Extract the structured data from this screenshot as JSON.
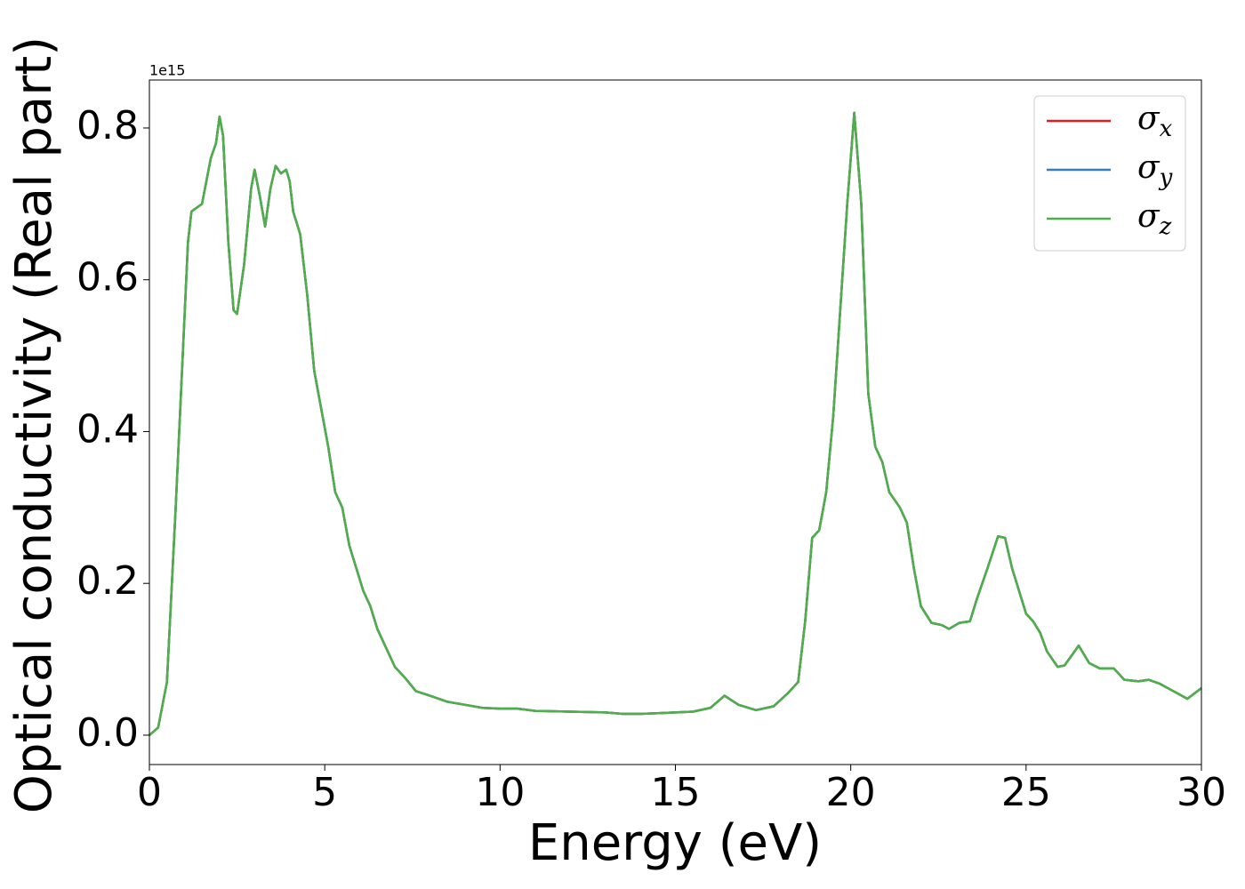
{
  "chart_data": {
    "type": "line",
    "xlabel": "Energy (eV)",
    "ylabel": "Optical conductivity (Real part)",
    "y_offset_text": "1e15",
    "xlim": [
      0,
      30
    ],
    "xticks": [
      0,
      5,
      10,
      15,
      20,
      25,
      30
    ],
    "ylim": [
      -0.0387,
      0.8632
    ],
    "yticks": [
      {
        "value": 0,
        "label": "0.0"
      },
      0.2,
      0.4,
      0.6,
      0.8
    ],
    "legend": "upper right",
    "grid": false,
    "x": [
      0,
      0.25,
      0.5,
      0.75,
      1.0,
      1.1,
      1.2,
      1.5,
      1.75,
      1.9,
      2.0,
      2.1,
      2.25,
      2.4,
      2.5,
      2.7,
      2.9,
      3.0,
      3.15,
      3.3,
      3.45,
      3.6,
      3.75,
      3.9,
      4.0,
      4.1,
      4.3,
      4.5,
      4.7,
      4.9,
      5.1,
      5.3,
      5.5,
      5.7,
      5.9,
      6.1,
      6.3,
      6.5,
      6.8,
      7.0,
      7.3,
      7.6,
      8.0,
      8.5,
      9.0,
      9.5,
      10,
      10.5,
      11,
      12,
      13,
      13.5,
      14,
      14.5,
      15,
      15.5,
      16,
      16.4,
      16.8,
      17.3,
      17.8,
      18.2,
      18.5,
      18.7,
      18.9,
      19.1,
      19.3,
      19.5,
      19.7,
      19.9,
      20.1,
      20.3,
      20.5,
      20.7,
      20.9,
      21.1,
      21.4,
      21.6,
      21.8,
      22.0,
      22.3,
      22.6,
      22.8,
      23.1,
      23.4,
      23.6,
      23.9,
      24.2,
      24.4,
      24.6,
      24.8,
      25.0,
      25.2,
      25.4,
      25.6,
      25.9,
      26.1,
      26.5,
      26.8,
      27.1,
      27.5,
      27.8,
      28.2,
      28.5,
      28.8,
      29.2,
      29.6,
      30
    ],
    "series": [
      {
        "name": "σx",
        "color": "#e41a1c",
        "values": [
          0,
          0.01,
          0.07,
          0.3,
          0.55,
          0.65,
          0.69,
          0.7,
          0.76,
          0.78,
          0.815,
          0.79,
          0.65,
          0.56,
          0.555,
          0.62,
          0.72,
          0.745,
          0.71,
          0.67,
          0.72,
          0.75,
          0.74,
          0.745,
          0.73,
          0.69,
          0.66,
          0.58,
          0.48,
          0.43,
          0.38,
          0.32,
          0.3,
          0.25,
          0.22,
          0.19,
          0.17,
          0.14,
          0.11,
          0.09,
          0.075,
          0.058,
          0.052,
          0.044,
          0.04,
          0.036,
          0.035,
          0.035,
          0.032,
          0.031,
          0.03,
          0.028,
          0.028,
          0.029,
          0.03,
          0.031,
          0.036,
          0.052,
          0.04,
          0.033,
          0.038,
          0.055,
          0.07,
          0.15,
          0.26,
          0.27,
          0.32,
          0.42,
          0.56,
          0.7,
          0.82,
          0.7,
          0.45,
          0.38,
          0.36,
          0.32,
          0.3,
          0.28,
          0.22,
          0.17,
          0.148,
          0.145,
          0.14,
          0.148,
          0.15,
          0.18,
          0.22,
          0.262,
          0.26,
          0.22,
          0.19,
          0.16,
          0.15,
          0.135,
          0.11,
          0.09,
          0.092,
          0.118,
          0.095,
          0.088,
          0.088,
          0.073,
          0.071,
          0.073,
          0.068,
          0.058,
          0.048,
          0.062
        ]
      },
      {
        "name": "σy",
        "color": "#377eb8",
        "values": [
          0,
          0.01,
          0.07,
          0.3,
          0.55,
          0.65,
          0.69,
          0.7,
          0.76,
          0.78,
          0.815,
          0.79,
          0.65,
          0.56,
          0.555,
          0.62,
          0.72,
          0.745,
          0.71,
          0.67,
          0.72,
          0.75,
          0.74,
          0.745,
          0.73,
          0.69,
          0.66,
          0.58,
          0.48,
          0.43,
          0.38,
          0.32,
          0.3,
          0.25,
          0.22,
          0.19,
          0.17,
          0.14,
          0.11,
          0.09,
          0.075,
          0.058,
          0.052,
          0.044,
          0.04,
          0.036,
          0.035,
          0.035,
          0.032,
          0.031,
          0.03,
          0.028,
          0.028,
          0.029,
          0.03,
          0.031,
          0.036,
          0.052,
          0.04,
          0.033,
          0.038,
          0.055,
          0.07,
          0.15,
          0.26,
          0.27,
          0.32,
          0.42,
          0.56,
          0.7,
          0.82,
          0.7,
          0.45,
          0.38,
          0.36,
          0.32,
          0.3,
          0.28,
          0.22,
          0.17,
          0.148,
          0.145,
          0.14,
          0.148,
          0.15,
          0.18,
          0.22,
          0.262,
          0.26,
          0.22,
          0.19,
          0.16,
          0.15,
          0.135,
          0.11,
          0.09,
          0.092,
          0.118,
          0.095,
          0.088,
          0.088,
          0.073,
          0.071,
          0.073,
          0.068,
          0.058,
          0.048,
          0.062
        ]
      },
      {
        "name": "σz",
        "color": "#4daf4a",
        "values": [
          0,
          0.01,
          0.07,
          0.3,
          0.55,
          0.65,
          0.69,
          0.7,
          0.76,
          0.78,
          0.815,
          0.79,
          0.65,
          0.56,
          0.555,
          0.62,
          0.72,
          0.745,
          0.71,
          0.67,
          0.72,
          0.75,
          0.74,
          0.745,
          0.73,
          0.69,
          0.66,
          0.58,
          0.48,
          0.43,
          0.38,
          0.32,
          0.3,
          0.25,
          0.22,
          0.19,
          0.17,
          0.14,
          0.11,
          0.09,
          0.075,
          0.058,
          0.052,
          0.044,
          0.04,
          0.036,
          0.035,
          0.035,
          0.032,
          0.031,
          0.03,
          0.028,
          0.028,
          0.029,
          0.03,
          0.031,
          0.036,
          0.052,
          0.04,
          0.033,
          0.038,
          0.055,
          0.07,
          0.15,
          0.26,
          0.27,
          0.32,
          0.42,
          0.56,
          0.7,
          0.82,
          0.7,
          0.45,
          0.38,
          0.36,
          0.32,
          0.3,
          0.28,
          0.22,
          0.17,
          0.148,
          0.145,
          0.14,
          0.148,
          0.15,
          0.18,
          0.22,
          0.262,
          0.26,
          0.22,
          0.19,
          0.16,
          0.15,
          0.135,
          0.11,
          0.09,
          0.092,
          0.118,
          0.095,
          0.088,
          0.088,
          0.073,
          0.071,
          0.073,
          0.068,
          0.058,
          0.048,
          0.062
        ]
      }
    ]
  }
}
